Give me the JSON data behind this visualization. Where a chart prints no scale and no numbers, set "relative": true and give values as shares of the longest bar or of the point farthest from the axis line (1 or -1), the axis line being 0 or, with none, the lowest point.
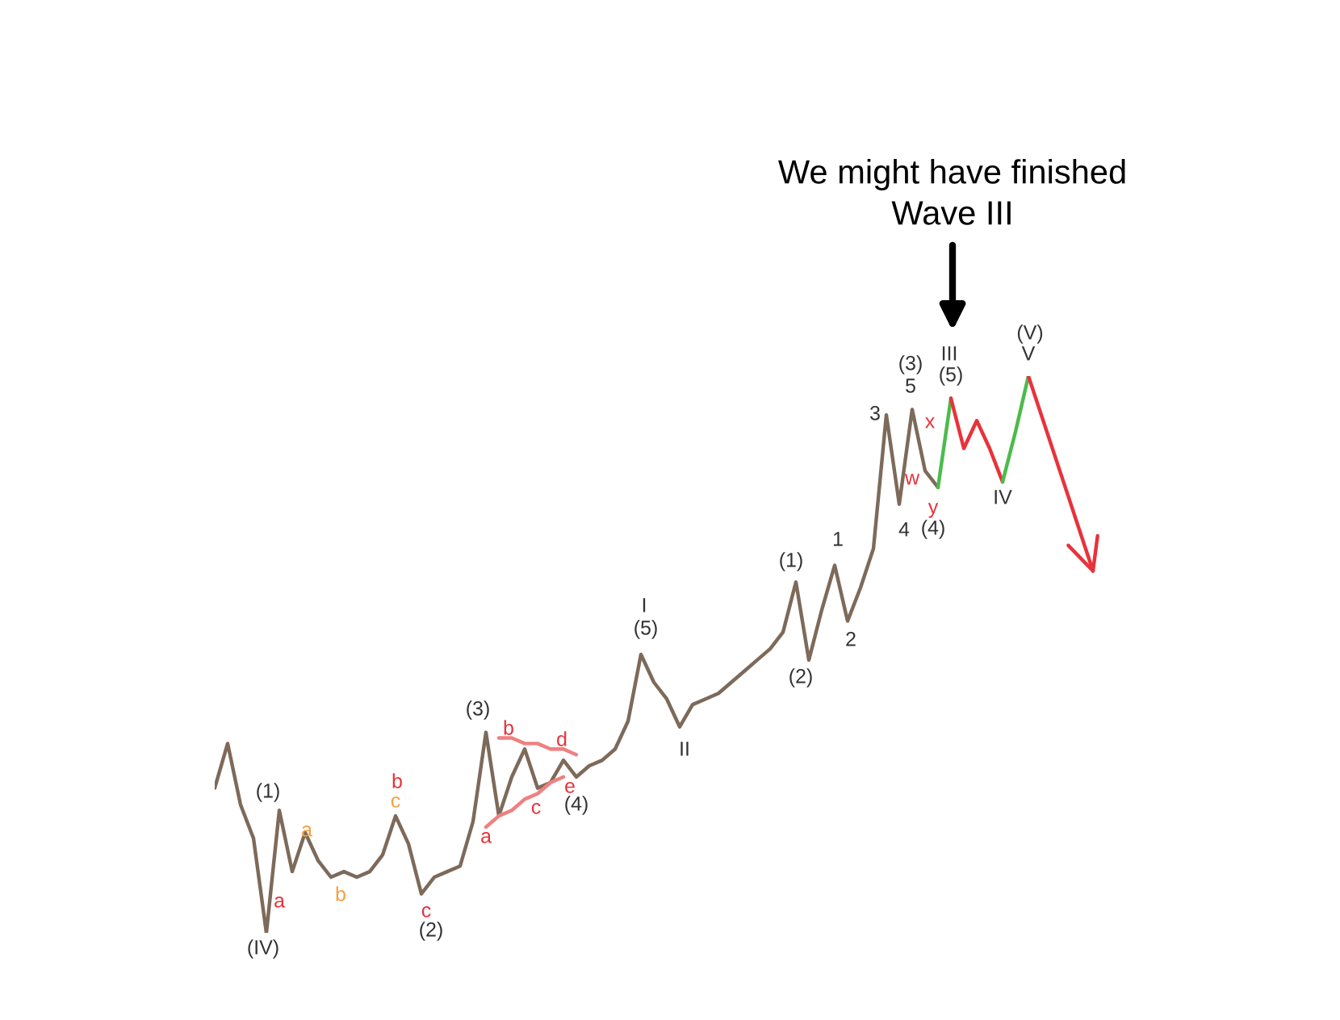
{
  "chart_data": {
    "type": "line",
    "relative": true,
    "categories": [
      null,
      null,
      null,
      null,
      null,
      null,
      null,
      null,
      null,
      null,
      null,
      null,
      null,
      null,
      null,
      null,
      null,
      null,
      null,
      null,
      null,
      null,
      null,
      null,
      null,
      null,
      null,
      null,
      null,
      null,
      null,
      null,
      null,
      null,
      null,
      null,
      null,
      null,
      null,
      null,
      null,
      null,
      null,
      null,
      null,
      null,
      null,
      null,
      null,
      null,
      null,
      null,
      null,
      null,
      null,
      null,
      null,
      null,
      null,
      null,
      null,
      null,
      null,
      null,
      null,
      null,
      null,
      null,
      null
    ],
    "series": [
      {
        "color": "#7d6a5a",
        "values": [
          0.26,
          0.34,
          0.23,
          0.17,
          0,
          0.22,
          0.11,
          0.18,
          0.13,
          0.1,
          0.11,
          0.1,
          0.11,
          0.14,
          0.21,
          0.16,
          0.07,
          0.1,
          0.11,
          0.12,
          0.2,
          0.36,
          0.21,
          0.28,
          0.33,
          0.26,
          0.27,
          0.31,
          0.28,
          0.3,
          0.31,
          0.33,
          0.38,
          0.5,
          0.45,
          0.42,
          0.37,
          0.41,
          0.42,
          0.43,
          0.45,
          0.47,
          0.49,
          0.51,
          0.54,
          0.63,
          0.49,
          0.58,
          0.66,
          0.56,
          0.62,
          0.69,
          0.93,
          0.77,
          0.94,
          0.83,
          0.8,
          null,
          null,
          null,
          null,
          null,
          null,
          null,
          null,
          null,
          null,
          null,
          null
        ]
      },
      {
        "color": "#f08080",
        "values": [
          null,
          null,
          null,
          null,
          null,
          null,
          null,
          null,
          null,
          null,
          null,
          null,
          null,
          null,
          null,
          null,
          null,
          null,
          null,
          null,
          null,
          null,
          0.35,
          0.35,
          0.34,
          0.34,
          0.33,
          0.33,
          0.32,
          null,
          null,
          null,
          null,
          null,
          null,
          null,
          null,
          null,
          null,
          null,
          null,
          null,
          null,
          null,
          null,
          null,
          null,
          null,
          null,
          null,
          null,
          null,
          null,
          null,
          null,
          null,
          null,
          null,
          null,
          null,
          null,
          null,
          null,
          null,
          null,
          null,
          null,
          null,
          null
        ]
      },
      {
        "color": "#f08080",
        "values": [
          null,
          null,
          null,
          null,
          null,
          null,
          null,
          null,
          null,
          null,
          null,
          null,
          null,
          null,
          null,
          null,
          null,
          null,
          null,
          null,
          null,
          0.19,
          0.21,
          0.22,
          0.24,
          0.25,
          0.27,
          0.28,
          null,
          null,
          null,
          null,
          null,
          null,
          null,
          null,
          null,
          null,
          null,
          null,
          null,
          null,
          null,
          null,
          null,
          null,
          null,
          null,
          null,
          null,
          null,
          null,
          null,
          null,
          null,
          null,
          null,
          null,
          null,
          null,
          null,
          null,
          null,
          null,
          null,
          null,
          null,
          null,
          null
        ]
      },
      {
        "color": "#4cbb4c",
        "values": [
          null,
          null,
          null,
          null,
          null,
          null,
          null,
          null,
          null,
          null,
          null,
          null,
          null,
          null,
          null,
          null,
          null,
          null,
          null,
          null,
          null,
          null,
          null,
          null,
          null,
          null,
          null,
          null,
          null,
          null,
          null,
          null,
          null,
          null,
          null,
          null,
          null,
          null,
          null,
          null,
          null,
          null,
          null,
          null,
          null,
          null,
          null,
          null,
          null,
          null,
          null,
          null,
          null,
          null,
          null,
          null,
          0.8,
          0.96,
          null,
          null,
          null,
          null,
          null,
          null,
          null,
          null,
          null,
          null,
          null
        ]
      },
      {
        "color": "#e8333b",
        "values": [
          null,
          null,
          null,
          null,
          null,
          null,
          null,
          null,
          null,
          null,
          null,
          null,
          null,
          null,
          null,
          null,
          null,
          null,
          null,
          null,
          null,
          null,
          null,
          null,
          null,
          null,
          null,
          null,
          null,
          null,
          null,
          null,
          null,
          null,
          null,
          null,
          null,
          null,
          null,
          null,
          null,
          null,
          null,
          null,
          null,
          null,
          null,
          null,
          null,
          null,
          null,
          null,
          null,
          null,
          null,
          null,
          null,
          0.96,
          0.87,
          0.92,
          0.87,
          0.81,
          null,
          null,
          null,
          null,
          null,
          null,
          null
        ]
      },
      {
        "color": "#4cbb4c",
        "values": [
          null,
          null,
          null,
          null,
          null,
          null,
          null,
          null,
          null,
          null,
          null,
          null,
          null,
          null,
          null,
          null,
          null,
          null,
          null,
          null,
          null,
          null,
          null,
          null,
          null,
          null,
          null,
          null,
          null,
          null,
          null,
          null,
          null,
          null,
          null,
          null,
          null,
          null,
          null,
          null,
          null,
          null,
          null,
          null,
          null,
          null,
          null,
          null,
          null,
          null,
          null,
          null,
          null,
          null,
          null,
          null,
          null,
          null,
          null,
          null,
          null,
          0.81,
          0.9,
          1.0,
          null,
          null,
          null,
          null,
          null
        ]
      },
      {
        "color": "#e8333b",
        "values": [
          null,
          null,
          null,
          null,
          null,
          null,
          null,
          null,
          null,
          null,
          null,
          null,
          null,
          null,
          null,
          null,
          null,
          null,
          null,
          null,
          null,
          null,
          null,
          null,
          null,
          null,
          null,
          null,
          null,
          null,
          null,
          null,
          null,
          null,
          null,
          null,
          null,
          null,
          null,
          null,
          null,
          null,
          null,
          null,
          null,
          null,
          null,
          null,
          null,
          null,
          null,
          null,
          null,
          null,
          null,
          null,
          null,
          null,
          null,
          null,
          null,
          null,
          null,
          1.0,
          0.93,
          0.86,
          0.79,
          0.72,
          0.65
        ]
      }
    ],
    "annotations": [
      "We might have finished\nWave III",
      "(IV)",
      "(1)",
      "a",
      "a",
      "b",
      "b",
      "c",
      "c",
      "(2)",
      "(3)",
      "b",
      "d",
      "a",
      "c",
      "e",
      "(4)",
      "I",
      "(5)",
      "II",
      "(1)",
      "(2)",
      "1",
      "2",
      "3",
      "(3)",
      "5",
      "4",
      "w",
      "x",
      "y",
      "(4)",
      "III",
      "(5)",
      "IV",
      "(V)",
      "V"
    ]
  }
}
